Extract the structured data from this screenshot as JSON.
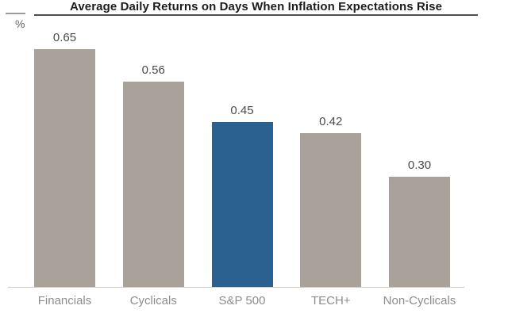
{
  "header": {
    "title": "Average Daily Returns on Days When Inflation Expectations Rise",
    "y_axis_unit": "%"
  },
  "chart_data": {
    "type": "bar",
    "title": "Average Daily Returns on Days When Inflation Expectations Rise",
    "ylabel": "%",
    "xlabel": "",
    "categories": [
      "Financials",
      "Cyclicals",
      "S&P 500",
      "TECH+",
      "Non-Cyclicals"
    ],
    "values": [
      0.65,
      0.56,
      0.45,
      0.42,
      0.3
    ],
    "value_labels": [
      "0.65",
      "0.56",
      "0.45",
      "0.42",
      "0.30"
    ],
    "ylim": [
      0,
      0.74
    ],
    "grid": false,
    "legend": "none",
    "bar_colors": [
      "#a9a29b",
      "#a9a29b",
      "#2b6191",
      "#a9a29b",
      "#a9a29b"
    ],
    "colors": {
      "default_bar": "#a9a29b",
      "highlight_bar": "#2b6191",
      "title_text": "#1c1c1c",
      "value_label_text": "#4a4a4a",
      "category_label_text": "#8d8d8d",
      "baseline": "#cdc9c5"
    },
    "highlight_category": "S&P 500"
  }
}
